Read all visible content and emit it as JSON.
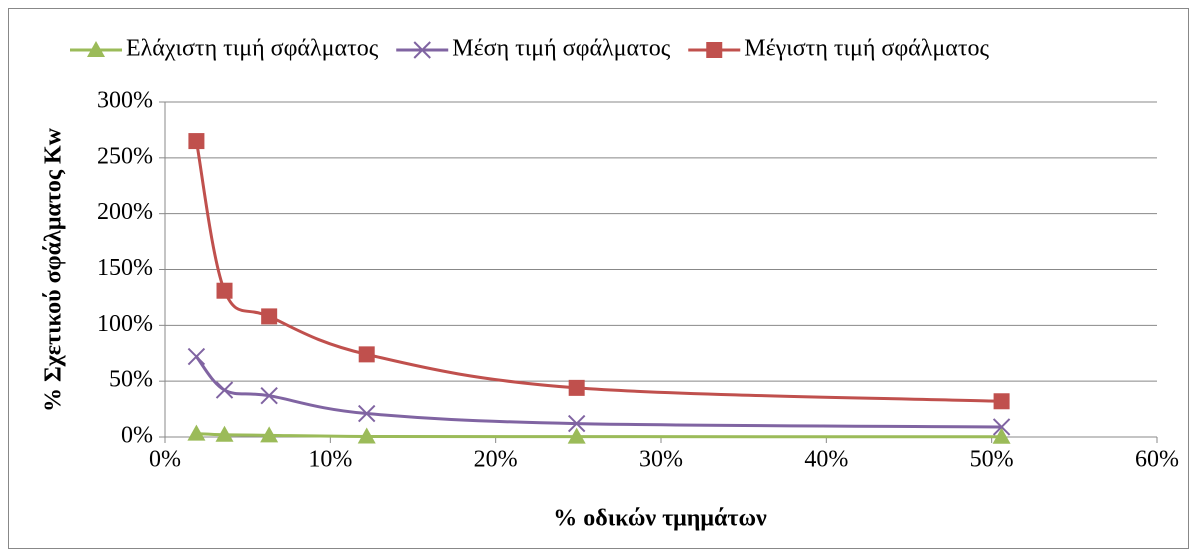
{
  "chart_data": {
    "type": "line",
    "x_label": "% οδικών τμημάτων",
    "y_label": "% Σχετικού σφάλματος Kw",
    "x": [
      1.9,
      3.6,
      6.3,
      12.2,
      24.9,
      50.6
    ],
    "series": [
      {
        "name": "Ελάχιστη τιμή σφάλματος",
        "color": "#9bbb59",
        "marker": "triangle",
        "values": [
          3,
          2,
          1.5,
          0.5,
          0.3,
          0.2
        ]
      },
      {
        "name": "Μέση τιμή σφάλματος",
        "color": "#8064a2",
        "marker": "x",
        "values": [
          72,
          42,
          37,
          21,
          12,
          9
        ]
      },
      {
        "name": "Μέγιστη τιμή σφάλματος",
        "color": "#c0504d",
        "marker": "square",
        "values": [
          265,
          131,
          108,
          74,
          44,
          32
        ]
      }
    ],
    "xlim": [
      0,
      60
    ],
    "xticks": [
      {
        "value": 0,
        "label": "0%"
      },
      {
        "value": 10,
        "label": "10%"
      },
      {
        "value": 20,
        "label": "20%"
      },
      {
        "value": 30,
        "label": "30%"
      },
      {
        "value": 40,
        "label": "40%"
      },
      {
        "value": 50,
        "label": "50%"
      },
      {
        "value": 60,
        "label": "60%"
      }
    ],
    "ylim": [
      0,
      300
    ],
    "yticks": [
      {
        "value": 0,
        "label": "0%"
      },
      {
        "value": 50,
        "label": "50%"
      },
      {
        "value": 100,
        "label": "100%"
      },
      {
        "value": 150,
        "label": "150%"
      },
      {
        "value": 200,
        "label": "200%"
      },
      {
        "value": 250,
        "label": "250%"
      },
      {
        "value": 300,
        "label": "300%"
      }
    ],
    "grid": true,
    "smooth": true,
    "legend": "top"
  }
}
